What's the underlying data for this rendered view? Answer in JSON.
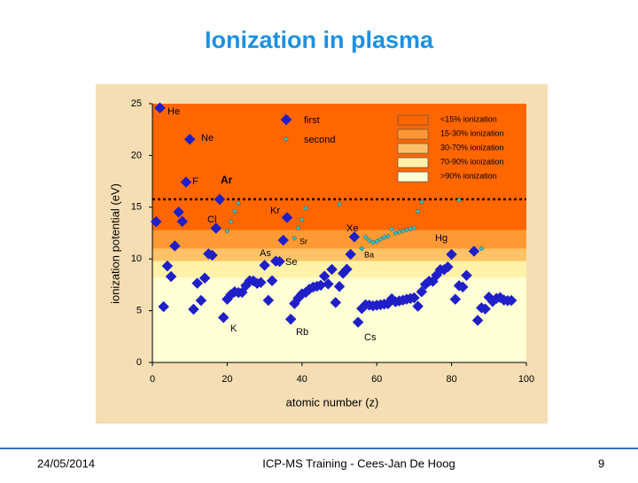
{
  "chart_data": {
    "type": "scatter",
    "title": "Ionization in plasma",
    "x_label": "atomic number (z)",
    "y_label": "ionization potential (eV)",
    "xlim": [
      0,
      100
    ],
    "xticks": [
      0,
      20,
      40,
      60,
      80,
      100
    ],
    "ylim": [
      0,
      25
    ],
    "yticks": [
      0,
      5,
      10,
      15,
      20,
      25
    ],
    "reference_line": 15.76,
    "bands": [
      {
        "label": "<15% ionization",
        "color": "#ff6600",
        "from": 12.8,
        "to": 25
      },
      {
        "label": "15-30% ionization",
        "color": "#ff9933",
        "from": 11.0,
        "to": 12.8
      },
      {
        "label": "30-70% ionization",
        "color": "#ffc266",
        "from": 9.8,
        "to": 11.0
      },
      {
        "label": "70-90% ionization",
        "color": "#fff2a8",
        "from": 8.2,
        "to": 9.8
      },
      {
        "label": ">90% ionization",
        "color": "#ffffd6",
        "from": 0,
        "to": 8.2
      }
    ],
    "series": [
      {
        "name": "first",
        "color": "#1f1fc8",
        "x": [
          1,
          2,
          3,
          4,
          5,
          6,
          7,
          8,
          9,
          10,
          11,
          12,
          13,
          14,
          15,
          16,
          17,
          18,
          19,
          20,
          21,
          22,
          23,
          24,
          25,
          26,
          27,
          28,
          29,
          30,
          31,
          32,
          33,
          34,
          35,
          36,
          37,
          38,
          39,
          40,
          41,
          42,
          43,
          44,
          45,
          46,
          47,
          48,
          49,
          50,
          51,
          52,
          53,
          54,
          55,
          56,
          57,
          58,
          59,
          60,
          61,
          62,
          63,
          64,
          65,
          66,
          67,
          68,
          69,
          70,
          71,
          72,
          73,
          74,
          75,
          76,
          77,
          78,
          79,
          80,
          81,
          82,
          83,
          84,
          86,
          87,
          88,
          89,
          90,
          91,
          92,
          93,
          94,
          95,
          96
        ],
        "values": [
          13.6,
          24.59,
          5.39,
          9.32,
          8.3,
          11.26,
          14.53,
          13.62,
          17.42,
          21.56,
          5.14,
          7.65,
          5.99,
          8.15,
          10.49,
          10.36,
          12.97,
          15.76,
          4.34,
          6.11,
          6.56,
          6.83,
          6.75,
          6.77,
          7.43,
          7.9,
          7.88,
          7.64,
          7.73,
          9.39,
          6.0,
          7.9,
          9.79,
          9.75,
          11.81,
          14.0,
          4.18,
          5.69,
          6.22,
          6.63,
          6.76,
          7.09,
          7.28,
          7.36,
          7.46,
          8.34,
          7.58,
          8.99,
          5.79,
          7.34,
          8.61,
          9.01,
          10.45,
          12.13,
          3.89,
          5.21,
          5.58,
          5.54,
          5.47,
          5.53,
          5.58,
          5.64,
          5.67,
          6.15,
          5.86,
          5.94,
          6.02,
          6.11,
          6.18,
          6.25,
          5.43,
          6.83,
          7.55,
          7.86,
          7.83,
          8.44,
          8.97,
          8.96,
          9.23,
          10.44,
          6.11,
          7.42,
          7.29,
          8.41,
          10.75,
          4.07,
          5.28,
          5.17,
          6.31,
          5.89,
          6.19,
          6.27,
          6.03,
          5.97,
          5.99
        ]
      },
      {
        "name": "second",
        "color": "#33cccc",
        "x": [
          20,
          21,
          22,
          23,
          38,
          39,
          40,
          41,
          50,
          56,
          57,
          58,
          59,
          60,
          61,
          62,
          63,
          64,
          65,
          66,
          67,
          68,
          69,
          70,
          71,
          72,
          82,
          88
        ],
        "values": [
          12.7,
          13.6,
          14.6,
          15.4,
          12.0,
          13.0,
          13.8,
          14.9,
          15.3,
          11.0,
          12.1,
          11.8,
          11.6,
          11.7,
          11.9,
          12.1,
          12.2,
          12.9,
          12.5,
          12.6,
          12.7,
          12.8,
          12.9,
          13.0,
          14.6,
          15.5,
          15.7,
          11.0
        ]
      }
    ],
    "element_labels": [
      "He",
      "Ne",
      "F",
      "Ar",
      "Cl",
      "Kr",
      "Sr",
      "As",
      "Se",
      "Xe",
      "Ba",
      "Hg",
      "K",
      "Rb",
      "Cs"
    ]
  },
  "footer": {
    "date": "24/05/2014",
    "center": "ICP-MS Training - Cees-Jan De Hoog",
    "page": "9"
  }
}
